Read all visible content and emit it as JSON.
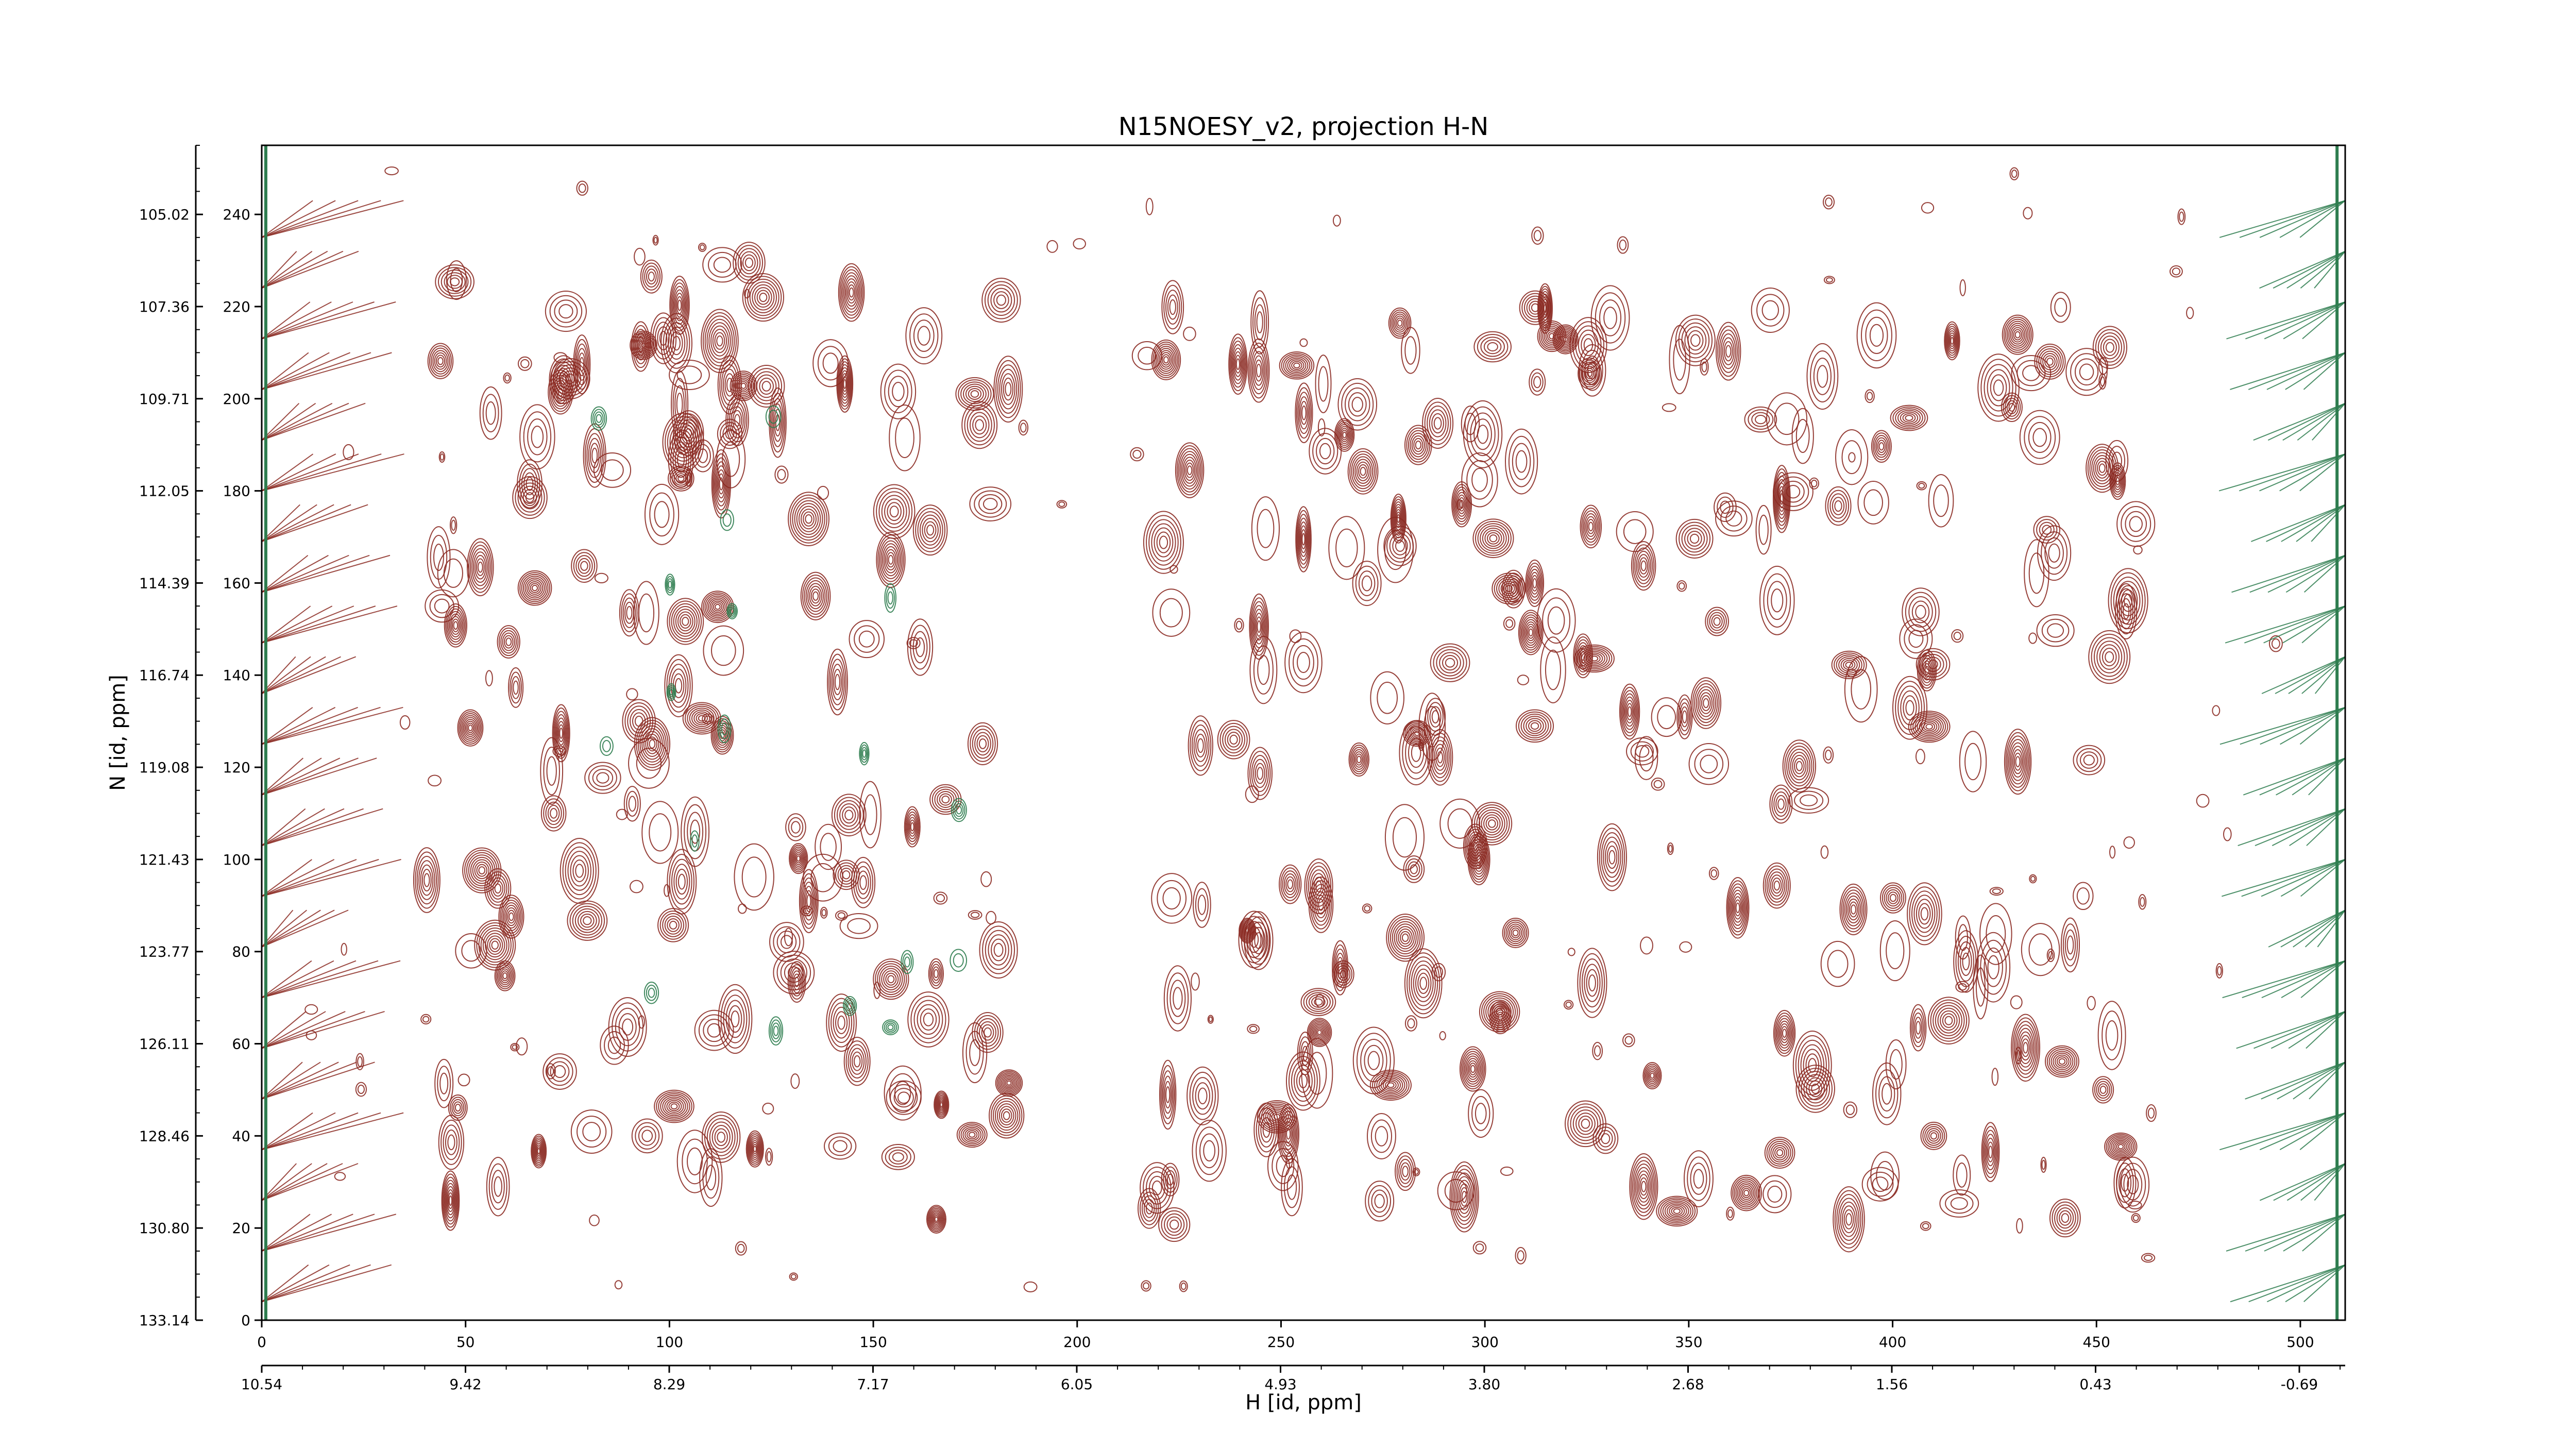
{
  "chart_data": {
    "type": "contour",
    "title": "N15NOESY_v2, projection H-N",
    "xlabel": "H [id, ppm]",
    "ylabel": "N [id, ppm]",
    "x_index_ticks": [
      "0",
      "50",
      "100",
      "150",
      "200",
      "250",
      "300",
      "350",
      "400",
      "450",
      "500"
    ],
    "x_ppm_ticks": [
      "10.54",
      "9.42",
      "8.29",
      "7.17",
      "6.05",
      "4.93",
      "3.80",
      "2.68",
      "1.56",
      "0.43",
      "-0.69"
    ],
    "y_index_ticks": [
      "0",
      "20",
      "40",
      "60",
      "80",
      "100",
      "120",
      "140",
      "160",
      "180",
      "200",
      "220",
      "240"
    ],
    "y_ppm_ticks": [
      "133.14",
      "130.80",
      "128.46",
      "126.11",
      "123.77",
      "121.43",
      "119.08",
      "116.74",
      "114.39",
      "112.05",
      "109.71",
      "107.36",
      "105.02"
    ],
    "x_index_range": [
      0,
      511
    ],
    "y_index_range": [
      0,
      255
    ],
    "grid": false,
    "colors": {
      "positive_contour": "#8b2a22",
      "negative_contour": "#2e7d4f",
      "axis": "#000000"
    },
    "peak_regions": [
      {
        "name": "left-cluster",
        "x_range": [
          40,
          185
        ],
        "y_range": [
          20,
          230
        ]
      },
      {
        "name": "right-cluster",
        "x_range": [
          215,
          460
        ],
        "y_range": [
          20,
          220
        ]
      },
      {
        "name": "left-edge-negative-band",
        "x_range": [
          0,
          5
        ],
        "y_range": [
          0,
          255
        ]
      },
      {
        "name": "right-edge-negative-band",
        "x_range": [
          495,
          511
        ],
        "y_range": [
          0,
          255
        ]
      }
    ]
  }
}
